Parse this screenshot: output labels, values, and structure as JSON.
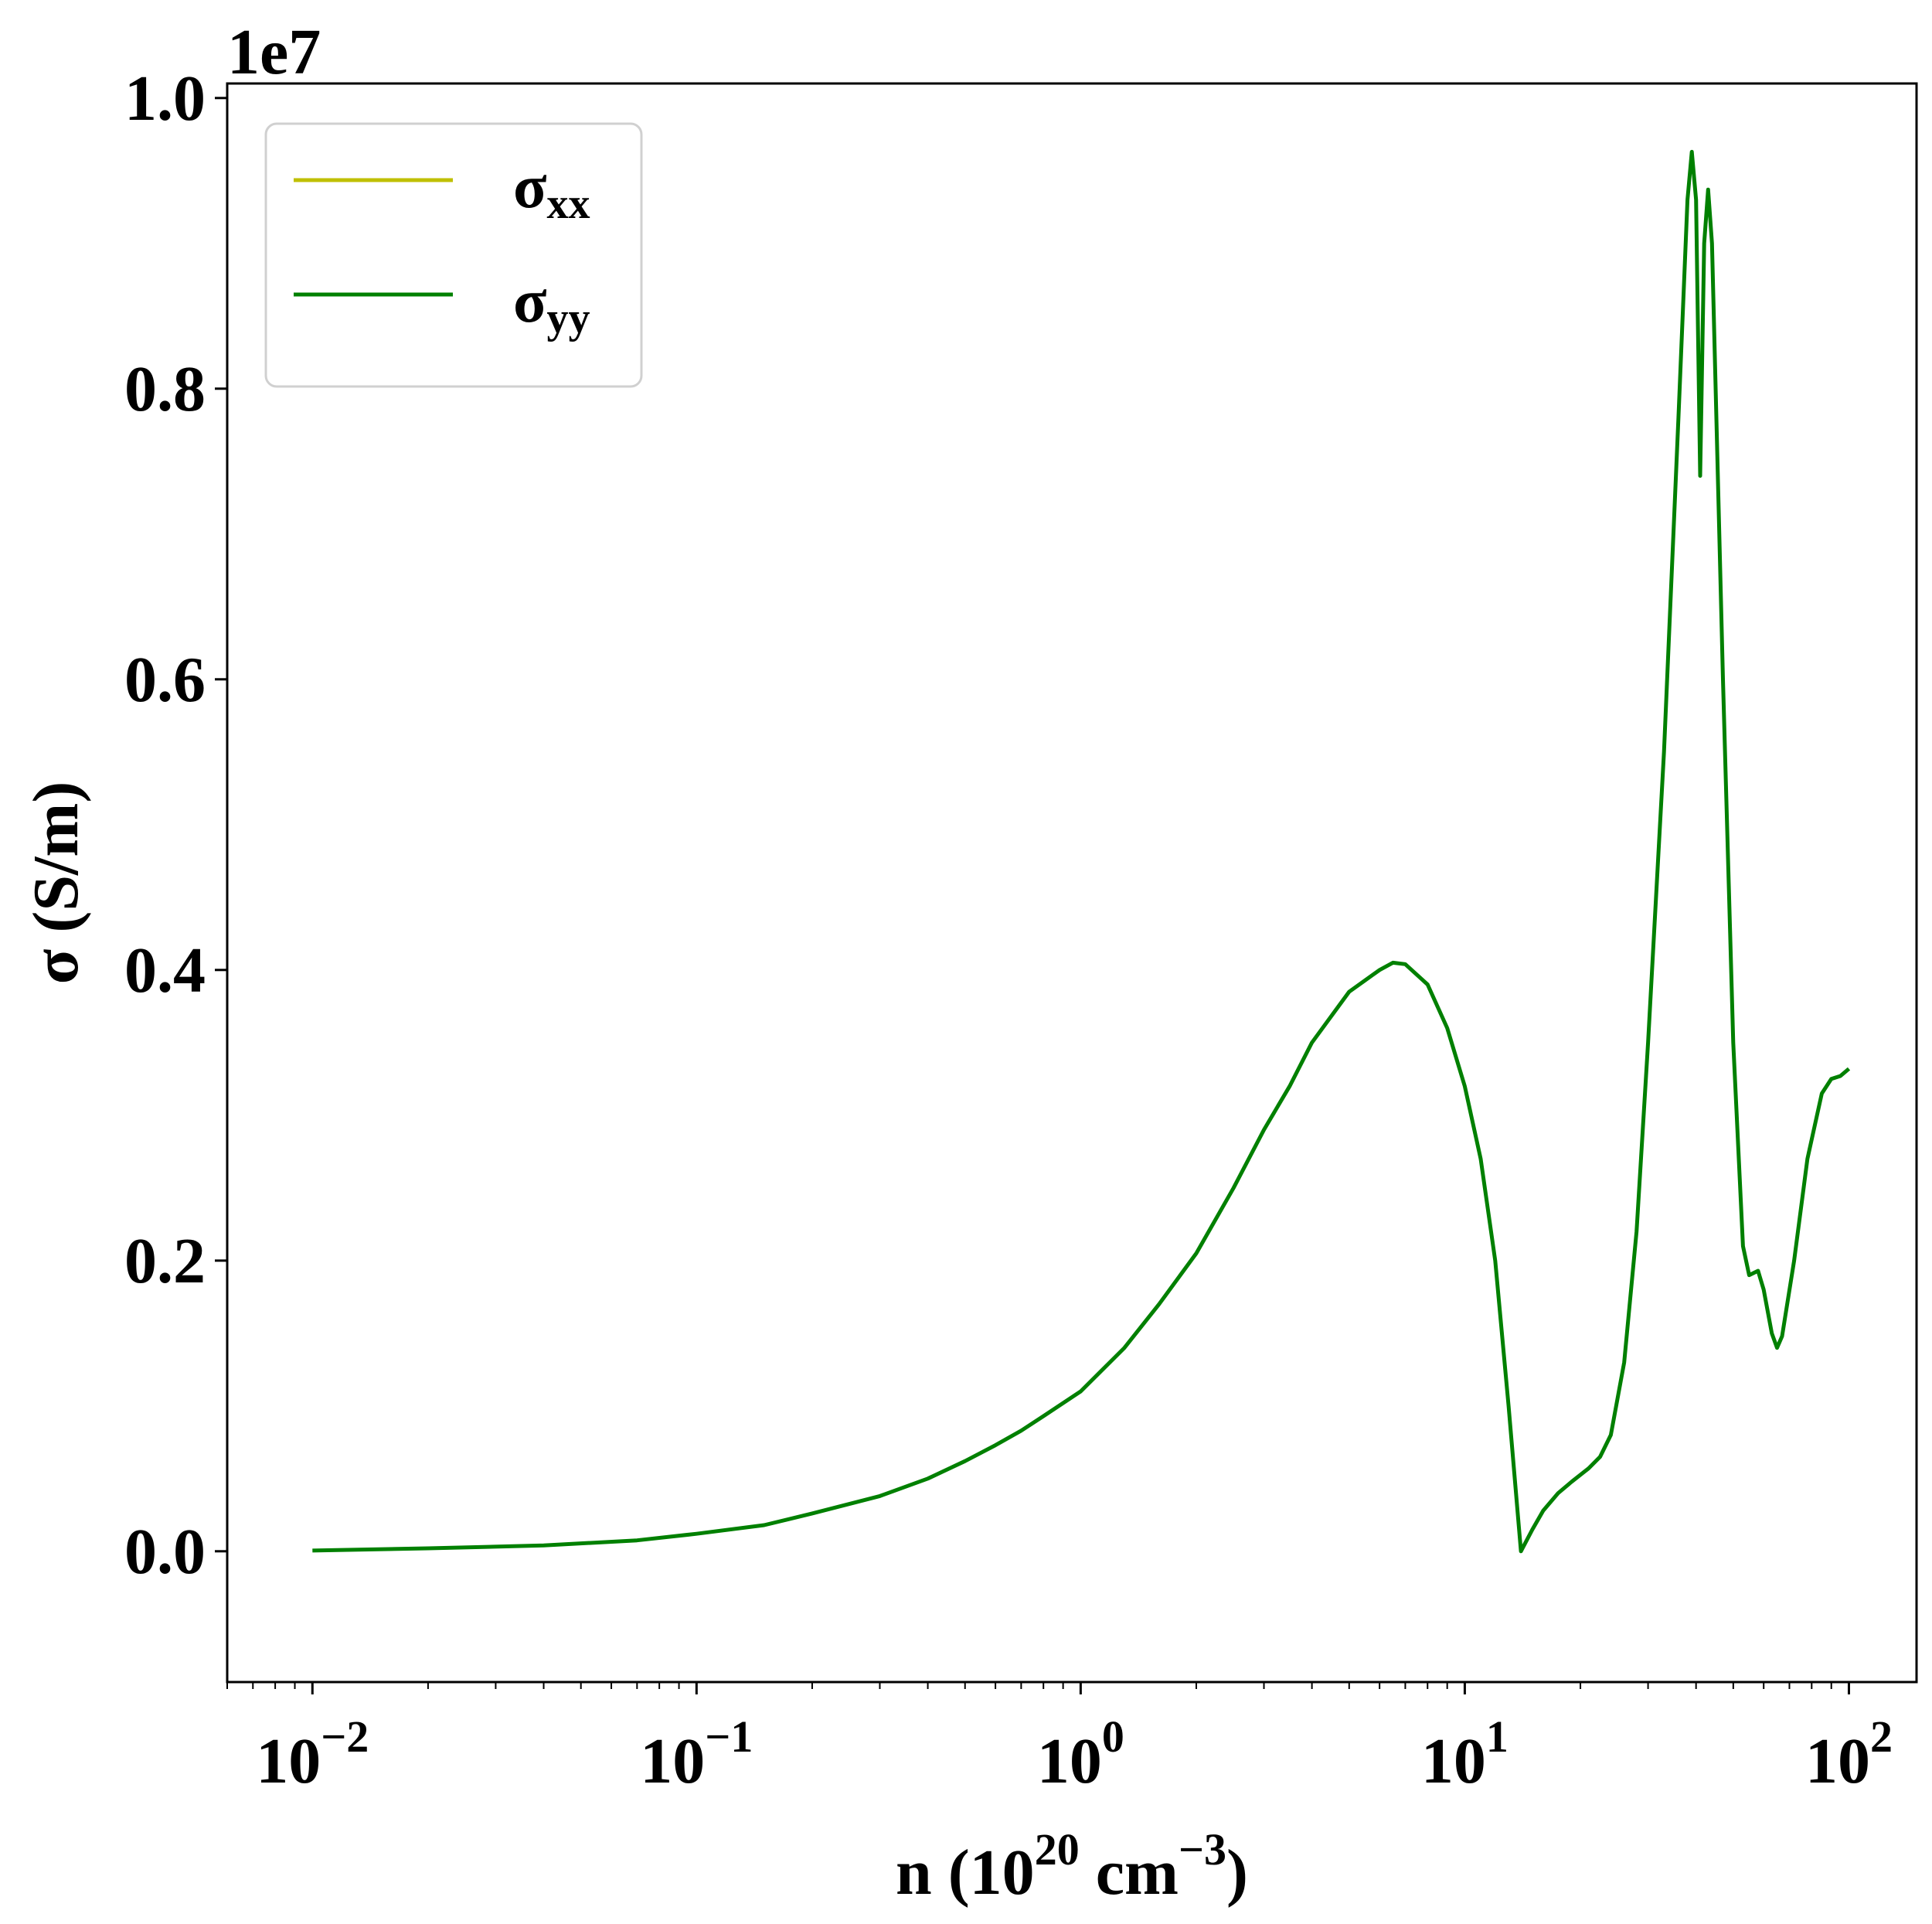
{
  "chart_data": {
    "type": "line",
    "x_scale": "log",
    "xlim": [
      0.006,
      150
    ],
    "ylim": [
      -0.09,
      1.01
    ],
    "y_offset_label": "1e7",
    "xlabel": {
      "base": "n (10",
      "sup1": "20",
      "mid": " cm",
      "sup2": "−3",
      "end": ")"
    },
    "ylabel": "σ (S/m)",
    "xticks": [
      {
        "value": 0.01,
        "base": "10",
        "exp": "−2"
      },
      {
        "value": 0.1,
        "base": "10",
        "exp": "−1"
      },
      {
        "value": 1,
        "base": "10",
        "exp": "0"
      },
      {
        "value": 10,
        "base": "10",
        "exp": "1"
      },
      {
        "value": 100,
        "base": "10",
        "exp": "2"
      }
    ],
    "yticks": [
      {
        "value": 0.0,
        "label": "0.0"
      },
      {
        "value": 0.2,
        "label": "0.2"
      },
      {
        "value": 0.4,
        "label": "0.4"
      },
      {
        "value": 0.6,
        "label": "0.6"
      },
      {
        "value": 0.8,
        "label": "0.8"
      },
      {
        "value": 1.0,
        "label": "1.0"
      }
    ],
    "legend": {
      "placement": "top-left",
      "entries": [
        {
          "symbol": "σ",
          "sub": "xx",
          "color": "#bfbf00"
        },
        {
          "symbol": "σ",
          "sub": "yy",
          "color": "#008000"
        }
      ]
    },
    "series": [
      {
        "color": "#008000",
        "points": [
          [
            0.01,
            0.0005
          ],
          [
            0.02,
            0.002
          ],
          [
            0.04,
            0.004
          ],
          [
            0.07,
            0.0075
          ],
          [
            0.1,
            0.012
          ],
          [
            0.15,
            0.018
          ],
          [
            0.2,
            0.026
          ],
          [
            0.3,
            0.038
          ],
          [
            0.4,
            0.05
          ],
          [
            0.5,
            0.062
          ],
          [
            0.6,
            0.073
          ],
          [
            0.7,
            0.083
          ],
          [
            0.8,
            0.093
          ],
          [
            1.0,
            0.11
          ],
          [
            1.3,
            0.14
          ],
          [
            1.6,
            0.17
          ],
          [
            2.0,
            0.205
          ],
          [
            2.5,
            0.25
          ],
          [
            3.0,
            0.29
          ],
          [
            3.5,
            0.32
          ],
          [
            4.0,
            0.35
          ],
          [
            5.0,
            0.385
          ],
          [
            6.0,
            0.4
          ],
          [
            6.5,
            0.405
          ],
          [
            7.0,
            0.404
          ],
          [
            8.0,
            0.39
          ],
          [
            9.0,
            0.36
          ],
          [
            10.0,
            0.32
          ],
          [
            11.0,
            0.27
          ],
          [
            12.0,
            0.2
          ],
          [
            13.0,
            0.1
          ],
          [
            14.0,
            0.0
          ],
          [
            15.0,
            0.015
          ],
          [
            16.0,
            0.028
          ],
          [
            17.5,
            0.04
          ],
          [
            19.0,
            0.048
          ],
          [
            21.0,
            0.057
          ],
          [
            22.5,
            0.065
          ],
          [
            24.0,
            0.08
          ],
          [
            26.0,
            0.13
          ],
          [
            28.0,
            0.22
          ],
          [
            30.0,
            0.35
          ],
          [
            33.0,
            0.55
          ],
          [
            36.0,
            0.78
          ],
          [
            38.0,
            0.93
          ],
          [
            39.0,
            0.963
          ],
          [
            40.0,
            0.93
          ],
          [
            41.0,
            0.74
          ],
          [
            42.0,
            0.9
          ],
          [
            43.0,
            0.937
          ],
          [
            44.0,
            0.9
          ],
          [
            47.0,
            0.6
          ],
          [
            50.0,
            0.35
          ],
          [
            53.0,
            0.21
          ],
          [
            55.0,
            0.19
          ],
          [
            58.0,
            0.193
          ],
          [
            60.0,
            0.18
          ],
          [
            63.0,
            0.15
          ],
          [
            65.0,
            0.14
          ],
          [
            67.0,
            0.148
          ],
          [
            72.0,
            0.2
          ],
          [
            78.0,
            0.27
          ],
          [
            85.0,
            0.315
          ],
          [
            90.0,
            0.325
          ],
          [
            95.0,
            0.327
          ],
          [
            100.0,
            0.332
          ]
        ]
      }
    ]
  }
}
